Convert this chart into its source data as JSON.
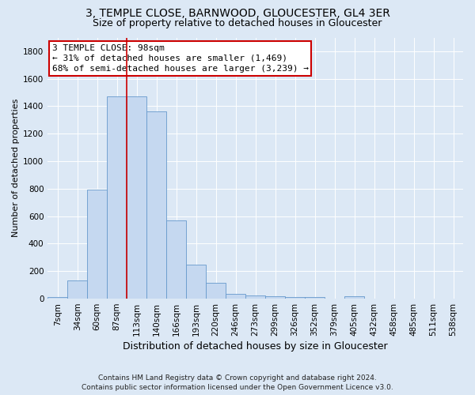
{
  "title": "3, TEMPLE CLOSE, BARNWOOD, GLOUCESTER, GL4 3ER",
  "subtitle": "Size of property relative to detached houses in Gloucester",
  "xlabel": "Distribution of detached houses by size in Gloucester",
  "ylabel": "Number of detached properties",
  "footer_line1": "Contains HM Land Registry data © Crown copyright and database right 2024.",
  "footer_line2": "Contains public sector information licensed under the Open Government Licence v3.0.",
  "bar_labels": [
    "7sqm",
    "34sqm",
    "60sqm",
    "87sqm",
    "113sqm",
    "140sqm",
    "166sqm",
    "193sqm",
    "220sqm",
    "246sqm",
    "273sqm",
    "299sqm",
    "326sqm",
    "352sqm",
    "379sqm",
    "405sqm",
    "432sqm",
    "458sqm",
    "485sqm",
    "511sqm",
    "538sqm"
  ],
  "bar_values": [
    10,
    135,
    795,
    1470,
    1470,
    1365,
    570,
    250,
    115,
    35,
    25,
    20,
    10,
    10,
    0,
    20,
    0,
    0,
    0,
    0,
    0
  ],
  "bar_color": "#c5d8f0",
  "bar_edge_color": "#6699cc",
  "vline_position": 3.5,
  "vline_color": "#cc0000",
  "annotation_text": "3 TEMPLE CLOSE: 98sqm\n← 31% of detached houses are smaller (1,469)\n68% of semi-detached houses are larger (3,239) →",
  "annotation_box_color": "#ffffff",
  "annotation_box_edge": "#cc0000",
  "ylim": [
    0,
    1900
  ],
  "yticks": [
    0,
    200,
    400,
    600,
    800,
    1000,
    1200,
    1400,
    1600,
    1800
  ],
  "background_color": "#dce8f5",
  "plot_bg_color": "#dce8f5",
  "title_fontsize": 10,
  "subtitle_fontsize": 9,
  "xlabel_fontsize": 9,
  "ylabel_fontsize": 8,
  "tick_fontsize": 7.5,
  "annotation_fontsize": 8,
  "footer_fontsize": 6.5
}
